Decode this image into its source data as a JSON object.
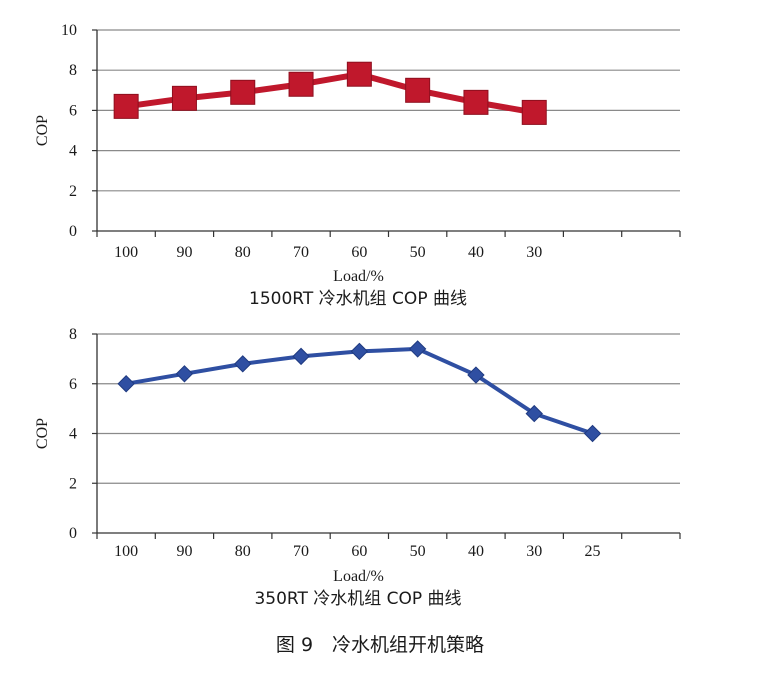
{
  "chart_data": [
    {
      "type": "line",
      "title": "1500RT 冷水机组 COP 曲线",
      "xlabel": "Load/%",
      "ylabel": "COP",
      "categories": [
        "100",
        "90",
        "80",
        "70",
        "60",
        "50",
        "40",
        "30"
      ],
      "series": [
        {
          "values": [
            6.2,
            6.6,
            6.9,
            7.3,
            7.8,
            7.0,
            6.4,
            5.9
          ],
          "color": "#c0182c",
          "marker": "square"
        }
      ],
      "ylim": [
        0,
        10
      ],
      "yticks": [
        "0",
        "2",
        "4",
        "6",
        "8",
        "10"
      ],
      "x_slots": 10,
      "grid": true
    },
    {
      "type": "line",
      "title": "350RT 冷水机组 COP 曲线",
      "xlabel": "Load/%",
      "ylabel": "COP",
      "categories": [
        "100",
        "90",
        "80",
        "70",
        "60",
        "50",
        "40",
        "30",
        "25"
      ],
      "series": [
        {
          "values": [
            6.0,
            6.4,
            6.8,
            7.1,
            7.3,
            7.4,
            6.35,
            4.8,
            4.0
          ],
          "color": "#2f4fa2",
          "marker": "diamond"
        }
      ],
      "ylim": [
        0,
        8
      ],
      "yticks": [
        "0",
        "2",
        "4",
        "6",
        "8"
      ],
      "x_slots": 10,
      "grid": true
    }
  ],
  "figure_caption": "图 9　冷水机组开机策略"
}
